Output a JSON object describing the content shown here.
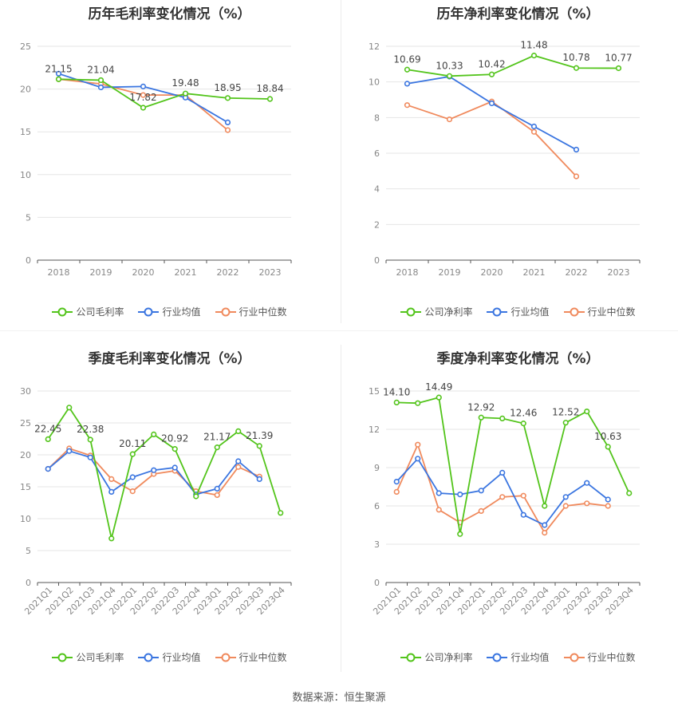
{
  "source_label": "数据来源：恒生聚源",
  "legend_labels": {
    "gross_company": "公司毛利率",
    "net_company": "公司净利率",
    "industry_mean": "行业均值",
    "industry_median": "行业中位数"
  },
  "colors": {
    "company": "#52c41a",
    "mean": "#3a75e0",
    "median": "#f08a5d"
  },
  "chart_data": [
    {
      "type": "line",
      "title": "历年毛利率变化情况（%）",
      "categories": [
        "2018",
        "2019",
        "2020",
        "2021",
        "2022",
        "2023"
      ],
      "ylim": [
        0,
        25
      ],
      "yticks": [
        0,
        5,
        10,
        15,
        20,
        25
      ],
      "series": [
        {
          "name": "公司毛利率",
          "values": [
            21.15,
            21.04,
            17.82,
            19.48,
            18.95,
            18.84
          ],
          "labels": [
            "21.15",
            "21.04",
            "17.82",
            "19.48",
            "18.95",
            "18.84"
          ]
        },
        {
          "name": "行业均值",
          "values": [
            21.8,
            20.2,
            20.3,
            19.0,
            16.1,
            null
          ]
        },
        {
          "name": "行业中位数",
          "values": [
            21.15,
            20.6,
            19.3,
            19.3,
            15.2,
            null
          ]
        }
      ]
    },
    {
      "type": "line",
      "title": "历年净利率变化情况（%）",
      "categories": [
        "2018",
        "2019",
        "2020",
        "2021",
        "2022",
        "2023"
      ],
      "ylim": [
        0,
        12
      ],
      "yticks": [
        0,
        2,
        4,
        6,
        8,
        10,
        12
      ],
      "series": [
        {
          "name": "公司净利率",
          "values": [
            10.69,
            10.33,
            10.42,
            11.48,
            10.78,
            10.77
          ],
          "labels": [
            "10.69",
            "10.33",
            "10.42",
            "11.48",
            "10.78",
            "10.77"
          ]
        },
        {
          "name": "行业均值",
          "values": [
            9.9,
            10.3,
            8.8,
            7.5,
            6.2,
            null
          ]
        },
        {
          "name": "行业中位数",
          "values": [
            8.7,
            7.9,
            8.9,
            7.2,
            4.7,
            null
          ]
        }
      ]
    },
    {
      "type": "line",
      "title": "季度毛利率变化情况（%）",
      "categories": [
        "2021Q1",
        "2021Q2",
        "2021Q3",
        "2021Q4",
        "2022Q1",
        "2022Q2",
        "2022Q3",
        "2022Q4",
        "2023Q1",
        "2023Q2",
        "2023Q3",
        "2023Q4"
      ],
      "ylim": [
        0,
        30
      ],
      "yticks": [
        0,
        5,
        10,
        15,
        20,
        25,
        30
      ],
      "series": [
        {
          "name": "公司毛利率",
          "values": [
            22.45,
            27.4,
            22.38,
            6.9,
            20.11,
            23.2,
            20.92,
            13.5,
            21.17,
            23.7,
            21.39,
            10.9
          ],
          "labels": [
            "22.45",
            "",
            "22.38",
            "",
            "20.11",
            "",
            "20.92",
            "",
            "21.17",
            "",
            "21.39",
            ""
          ]
        },
        {
          "name": "行业均值",
          "values": [
            17.8,
            20.6,
            19.6,
            14.2,
            16.5,
            17.6,
            18.0,
            13.8,
            14.7,
            19.0,
            16.2,
            null
          ]
        },
        {
          "name": "行业中位数",
          "values": [
            17.8,
            21.0,
            19.9,
            16.2,
            14.3,
            17.0,
            17.5,
            14.3,
            13.7,
            18.1,
            16.6,
            null
          ]
        }
      ]
    },
    {
      "type": "line",
      "title": "季度净利率变化情况（%）",
      "categories": [
        "2021Q1",
        "2021Q2",
        "2021Q3",
        "2021Q4",
        "2022Q1",
        "2022Q2",
        "2022Q3",
        "2022Q4",
        "2023Q1",
        "2023Q2",
        "2023Q3",
        "2023Q4"
      ],
      "ylim": [
        0,
        15
      ],
      "yticks": [
        0,
        3,
        6,
        9,
        12,
        15
      ],
      "series": [
        {
          "name": "公司净利率",
          "values": [
            14.1,
            14.05,
            14.49,
            3.8,
            12.92,
            12.85,
            12.46,
            6.0,
            12.52,
            13.4,
            10.63,
            7.0
          ],
          "labels": [
            "14.10",
            "",
            "14.49",
            "",
            "12.92",
            "",
            "12.46",
            "",
            "12.52",
            "",
            "10.63",
            ""
          ]
        },
        {
          "name": "行业均值",
          "values": [
            7.9,
            9.7,
            7.0,
            6.9,
            7.2,
            8.6,
            5.3,
            4.5,
            6.7,
            7.8,
            6.5,
            null
          ]
        },
        {
          "name": "行业中位数",
          "values": [
            7.1,
            10.8,
            5.7,
            4.7,
            5.6,
            6.7,
            6.8,
            3.9,
            6.0,
            6.2,
            6.0,
            null
          ]
        }
      ]
    }
  ]
}
